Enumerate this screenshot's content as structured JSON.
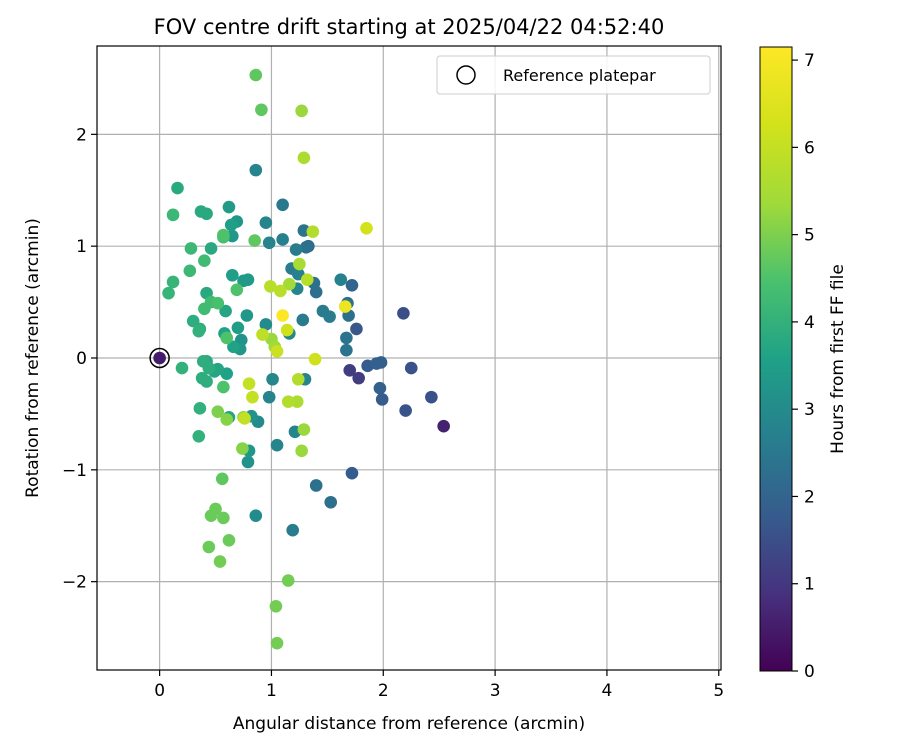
{
  "chart_data": {
    "type": "scatter",
    "title": "FOV centre drift starting at 2025/04/22 04:52:40",
    "xlabel": "Angular distance from reference (arcmin)",
    "ylabel": "Rotation from reference (arcmin)",
    "xlim": [
      -0.56,
      5.02
    ],
    "ylim": [
      -2.79,
      2.79
    ],
    "xticks": [
      0,
      1,
      2,
      3,
      4,
      5
    ],
    "yticks": [
      -2,
      -1,
      0,
      1,
      2
    ],
    "xtick_labels": [
      "0",
      "1",
      "2",
      "3",
      "4",
      "5"
    ],
    "ytick_labels": [
      "−2",
      "−1",
      "0",
      "1",
      "2"
    ],
    "grid": true,
    "legend": {
      "position": "top-right",
      "entries": [
        "Reference platepar"
      ]
    },
    "colorbar": {
      "label": "Hours from first FF file",
      "colormap": "viridis",
      "range": [
        0,
        7.15
      ],
      "ticks": [
        0,
        1,
        2,
        3,
        4,
        5,
        6,
        7
      ],
      "tick_labels": [
        "0",
        "1",
        "2",
        "3",
        "4",
        "5",
        "6",
        "7"
      ]
    },
    "reference_point": {
      "x": 0.0,
      "y": 0.0,
      "label": "Reference platepar"
    },
    "points": [
      {
        "x": 0.0,
        "y": 0.0,
        "h": 0.5
      },
      {
        "x": 2.54,
        "y": -0.61,
        "h": 0.6
      },
      {
        "x": 2.43,
        "y": -0.35,
        "h": 1.6
      },
      {
        "x": 2.2,
        "y": -0.47,
        "h": 1.6
      },
      {
        "x": 2.18,
        "y": 0.4,
        "h": 1.5
      },
      {
        "x": 2.25,
        "y": -0.09,
        "h": 1.6
      },
      {
        "x": 1.7,
        "y": -0.11,
        "h": 1.1
      },
      {
        "x": 1.78,
        "y": -0.18,
        "h": 1.1
      },
      {
        "x": 1.86,
        "y": -0.07,
        "h": 1.8
      },
      {
        "x": 1.94,
        "y": -0.05,
        "h": 1.9
      },
      {
        "x": 1.98,
        "y": -0.04,
        "h": 1.9
      },
      {
        "x": 1.97,
        "y": -0.27,
        "h": 1.9
      },
      {
        "x": 1.99,
        "y": -0.37,
        "h": 1.8
      },
      {
        "x": 1.72,
        "y": -1.03,
        "h": 1.8
      },
      {
        "x": 1.76,
        "y": 0.26,
        "h": 1.7
      },
      {
        "x": 1.72,
        "y": 0.65,
        "h": 2.0
      },
      {
        "x": 1.68,
        "y": 0.49,
        "h": 2.3
      },
      {
        "x": 1.69,
        "y": 0.38,
        "h": 2.3
      },
      {
        "x": 1.67,
        "y": 0.18,
        "h": 2.4
      },
      {
        "x": 1.67,
        "y": 0.07,
        "h": 2.4
      },
      {
        "x": 1.62,
        "y": 0.7,
        "h": 2.7
      },
      {
        "x": 1.46,
        "y": 0.42,
        "h": 2.6
      },
      {
        "x": 1.52,
        "y": 0.37,
        "h": 2.6
      },
      {
        "x": 1.53,
        "y": -1.29,
        "h": 2.3
      },
      {
        "x": 1.4,
        "y": -1.14,
        "h": 2.3
      },
      {
        "x": 1.4,
        "y": 0.59,
        "h": 2.3
      },
      {
        "x": 1.38,
        "y": 0.67,
        "h": 2.3
      },
      {
        "x": 1.33,
        "y": 1.0,
        "h": 2.2
      },
      {
        "x": 1.31,
        "y": 0.99,
        "h": 2.3
      },
      {
        "x": 1.29,
        "y": 1.14,
        "h": 2.4
      },
      {
        "x": 1.28,
        "y": 0.34,
        "h": 2.6
      },
      {
        "x": 1.3,
        "y": -0.19,
        "h": 2.8
      },
      {
        "x": 1.21,
        "y": -0.66,
        "h": 2.8
      },
      {
        "x": 1.19,
        "y": -1.54,
        "h": 2.6
      },
      {
        "x": 1.22,
        "y": 0.97,
        "h": 2.6
      },
      {
        "x": 1.18,
        "y": 0.8,
        "h": 2.6
      },
      {
        "x": 1.24,
        "y": 0.75,
        "h": 2.7
      },
      {
        "x": 1.23,
        "y": 0.62,
        "h": 2.8
      },
      {
        "x": 1.1,
        "y": 1.37,
        "h": 2.5
      },
      {
        "x": 1.1,
        "y": 1.06,
        "h": 2.7
      },
      {
        "x": 1.16,
        "y": 0.22,
        "h": 2.9
      },
      {
        "x": 1.05,
        "y": -0.78,
        "h": 2.8
      },
      {
        "x": 1.01,
        "y": -0.19,
        "h": 2.9
      },
      {
        "x": 0.98,
        "y": -0.35,
        "h": 2.8
      },
      {
        "x": 0.98,
        "y": 1.03,
        "h": 2.8
      },
      {
        "x": 0.95,
        "y": 1.21,
        "h": 2.8
      },
      {
        "x": 0.86,
        "y": 1.68,
        "h": 2.8
      },
      {
        "x": 0.95,
        "y": 0.3,
        "h": 3.0
      },
      {
        "x": 0.88,
        "y": -0.57,
        "h": 3.0
      },
      {
        "x": 0.86,
        "y": -1.41,
        "h": 3.0
      },
      {
        "x": 0.79,
        "y": -0.93,
        "h": 3.2
      },
      {
        "x": 0.8,
        "y": -0.83,
        "h": 3.3
      },
      {
        "x": 0.82,
        "y": -0.52,
        "h": 3.2
      },
      {
        "x": 0.73,
        "y": 0.16,
        "h": 3.2
      },
      {
        "x": 0.72,
        "y": 0.08,
        "h": 3.3
      },
      {
        "x": 0.78,
        "y": 0.38,
        "h": 3.3
      },
      {
        "x": 0.79,
        "y": 0.7,
        "h": 3.4
      },
      {
        "x": 0.75,
        "y": 0.69,
        "h": 3.4
      },
      {
        "x": 0.69,
        "y": 1.22,
        "h": 3.3
      },
      {
        "x": 0.65,
        "y": 1.09,
        "h": 3.3
      },
      {
        "x": 0.62,
        "y": 1.35,
        "h": 3.4
      },
      {
        "x": 0.65,
        "y": 0.74,
        "h": 3.5
      },
      {
        "x": 0.64,
        "y": 1.19,
        "h": 3.5
      },
      {
        "x": 0.7,
        "y": 0.27,
        "h": 3.5
      },
      {
        "x": 0.66,
        "y": 0.1,
        "h": 3.6
      },
      {
        "x": 0.58,
        "y": 0.22,
        "h": 3.6
      },
      {
        "x": 0.6,
        "y": -0.14,
        "h": 3.6
      },
      {
        "x": 0.62,
        "y": -0.53,
        "h": 3.7
      },
      {
        "x": 0.59,
        "y": 0.42,
        "h": 3.7
      },
      {
        "x": 0.52,
        "y": -0.1,
        "h": 3.7
      },
      {
        "x": 0.49,
        "y": -0.12,
        "h": 3.7
      },
      {
        "x": 0.46,
        "y": 0.98,
        "h": 3.8
      },
      {
        "x": 0.42,
        "y": 1.29,
        "h": 3.8
      },
      {
        "x": 0.37,
        "y": 1.31,
        "h": 3.8
      },
      {
        "x": 0.42,
        "y": 0.58,
        "h": 3.8
      },
      {
        "x": 0.42,
        "y": -0.03,
        "h": 3.8
      },
      {
        "x": 0.44,
        "y": -0.09,
        "h": 3.9
      },
      {
        "x": 0.42,
        "y": -0.21,
        "h": 3.9
      },
      {
        "x": 0.38,
        "y": -0.18,
        "h": 3.9
      },
      {
        "x": 0.39,
        "y": -0.03,
        "h": 3.9
      },
      {
        "x": 0.36,
        "y": 0.26,
        "h": 3.9
      },
      {
        "x": 0.3,
        "y": 0.33,
        "h": 3.9
      },
      {
        "x": 0.35,
        "y": -0.7,
        "h": 4.0
      },
      {
        "x": 0.36,
        "y": -0.45,
        "h": 4.0
      },
      {
        "x": 0.2,
        "y": -0.09,
        "h": 4.0
      },
      {
        "x": 0.35,
        "y": 0.24,
        "h": 4.0
      },
      {
        "x": 0.16,
        "y": 1.52,
        "h": 3.8
      },
      {
        "x": 0.12,
        "y": 1.28,
        "h": 4.2
      },
      {
        "x": 0.12,
        "y": 0.68,
        "h": 4.1
      },
      {
        "x": 0.08,
        "y": 0.58,
        "h": 4.1
      },
      {
        "x": 0.28,
        "y": 0.98,
        "h": 4.2
      },
      {
        "x": 0.27,
        "y": 0.78,
        "h": 4.2
      },
      {
        "x": 0.4,
        "y": 0.87,
        "h": 4.3
      },
      {
        "x": 0.4,
        "y": 0.44,
        "h": 4.3
      },
      {
        "x": 0.46,
        "y": 0.5,
        "h": 4.3
      },
      {
        "x": 0.52,
        "y": 0.49,
        "h": 4.4
      },
      {
        "x": 0.57,
        "y": 1.08,
        "h": 4.4
      },
      {
        "x": 0.57,
        "y": 1.1,
        "h": 4.5
      },
      {
        "x": 0.57,
        "y": -0.26,
        "h": 4.5
      },
      {
        "x": 0.6,
        "y": 0.18,
        "h": 4.5
      },
      {
        "x": 0.69,
        "y": 0.61,
        "h": 4.5
      },
      {
        "x": 0.85,
        "y": 1.05,
        "h": 4.7
      },
      {
        "x": 0.86,
        "y": 2.53,
        "h": 4.7
      },
      {
        "x": 0.91,
        "y": 2.22,
        "h": 4.7
      },
      {
        "x": 0.56,
        "y": -1.08,
        "h": 4.7
      },
      {
        "x": 0.5,
        "y": -1.35,
        "h": 4.8
      },
      {
        "x": 0.46,
        "y": -1.41,
        "h": 4.8
      },
      {
        "x": 0.57,
        "y": -1.43,
        "h": 4.8
      },
      {
        "x": 0.44,
        "y": -1.69,
        "h": 4.8
      },
      {
        "x": 0.62,
        "y": -1.63,
        "h": 4.8
      },
      {
        "x": 0.54,
        "y": -1.82,
        "h": 4.9
      },
      {
        "x": 1.15,
        "y": -1.99,
        "h": 4.9
      },
      {
        "x": 1.04,
        "y": -2.22,
        "h": 4.9
      },
      {
        "x": 1.05,
        "y": -2.55,
        "h": 4.9
      },
      {
        "x": 0.52,
        "y": -0.48,
        "h": 5.0
      },
      {
        "x": 0.6,
        "y": -0.55,
        "h": 5.1
      },
      {
        "x": 0.74,
        "y": -0.81,
        "h": 5.1
      },
      {
        "x": 0.75,
        "y": -0.53,
        "h": 5.2
      },
      {
        "x": 1.27,
        "y": 2.21,
        "h": 5.3
      },
      {
        "x": 1.29,
        "y": -0.64,
        "h": 5.3
      },
      {
        "x": 1.27,
        "y": -0.83,
        "h": 5.3
      },
      {
        "x": 1.0,
        "y": 0.17,
        "h": 5.3
      },
      {
        "x": 1.03,
        "y": 0.1,
        "h": 5.4
      },
      {
        "x": 1.16,
        "y": 0.66,
        "h": 5.4
      },
      {
        "x": 1.25,
        "y": 0.84,
        "h": 5.5
      },
      {
        "x": 1.29,
        "y": 1.79,
        "h": 5.6
      },
      {
        "x": 1.23,
        "y": -0.39,
        "h": 5.6
      },
      {
        "x": 1.15,
        "y": -0.39,
        "h": 5.7
      },
      {
        "x": 1.24,
        "y": -0.19,
        "h": 5.7
      },
      {
        "x": 1.37,
        "y": 1.13,
        "h": 5.7
      },
      {
        "x": 1.32,
        "y": 0.7,
        "h": 5.8
      },
      {
        "x": 0.99,
        "y": 0.64,
        "h": 5.8
      },
      {
        "x": 1.08,
        "y": 0.6,
        "h": 5.8
      },
      {
        "x": 0.8,
        "y": -0.23,
        "h": 6.0
      },
      {
        "x": 0.83,
        "y": -0.35,
        "h": 6.0
      },
      {
        "x": 0.76,
        "y": -0.54,
        "h": 6.0
      },
      {
        "x": 0.92,
        "y": 0.21,
        "h": 5.9
      },
      {
        "x": 1.05,
        "y": 0.06,
        "h": 6.1
      },
      {
        "x": 1.14,
        "y": 0.25,
        "h": 6.2
      },
      {
        "x": 1.39,
        "y": -0.01,
        "h": 6.2
      },
      {
        "x": 1.85,
        "y": 1.16,
        "h": 6.3
      },
      {
        "x": 1.66,
        "y": 0.46,
        "h": 6.8
      },
      {
        "x": 1.1,
        "y": 0.38,
        "h": 7.2
      }
    ]
  }
}
